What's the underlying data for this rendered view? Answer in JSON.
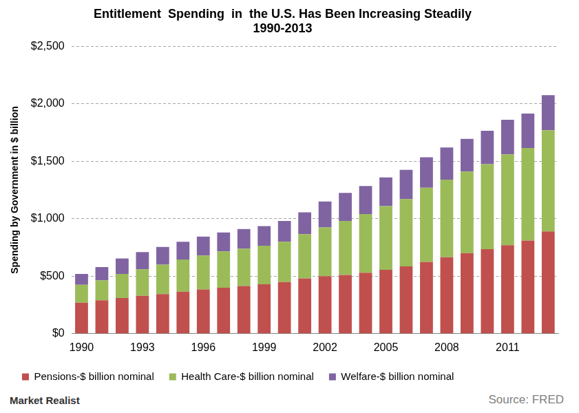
{
  "chart_data": {
    "type": "bar",
    "title": [
      "Entitlement  Spending  in  the U.S. Has Been Increasing Steadily",
      "1990-2013"
    ],
    "y_label": "Spending by Government in $ billion",
    "categories": [
      "1990",
      null,
      null,
      "1993",
      null,
      null,
      "1996",
      null,
      null,
      "1999",
      null,
      null,
      "2002",
      null,
      null,
      "2005",
      null,
      null,
      "2008",
      null,
      null,
      "2011",
      null,
      null
    ],
    "series": [
      {
        "name": "Pensions-$ billion nominal",
        "color": "#c0504d",
        "values": [
          270,
          290,
          310,
          330,
          345,
          365,
          385,
          400,
          415,
          430,
          450,
          480,
          500,
          510,
          530,
          555,
          585,
          625,
          665,
          700,
          735,
          770,
          810,
          890
        ]
      },
      {
        "name": "Health Care-$ billion nominal",
        "color": "#9bbb59",
        "values": [
          155,
          175,
          210,
          230,
          255,
          280,
          295,
          315,
          325,
          335,
          350,
          385,
          425,
          470,
          510,
          555,
          585,
          645,
          675,
          710,
          740,
          790,
          805,
          880
        ]
      },
      {
        "name": "Welfare-$ billion nominal",
        "color": "#8064a2",
        "values": [
          95,
          115,
          135,
          150,
          155,
          155,
          165,
          165,
          170,
          170,
          180,
          190,
          225,
          245,
          245,
          250,
          255,
          265,
          280,
          285,
          290,
          300,
          300,
          305
        ]
      }
    ],
    "stacked": true,
    "ylim": [
      0,
      2500
    ],
    "yticks": [
      {
        "value": 0,
        "label": "$0"
      },
      {
        "value": 500,
        "label": "$500"
      },
      {
        "value": 1000,
        "label": "$1,000"
      },
      {
        "value": 1500,
        "label": "$1,500"
      },
      {
        "value": 2000,
        "label": "$2,000"
      },
      {
        "value": 2500,
        "label": "$2,500"
      }
    ],
    "grid": true,
    "legend": "bottom",
    "logo_text": "Market Realist",
    "source": "Source: FRED"
  }
}
